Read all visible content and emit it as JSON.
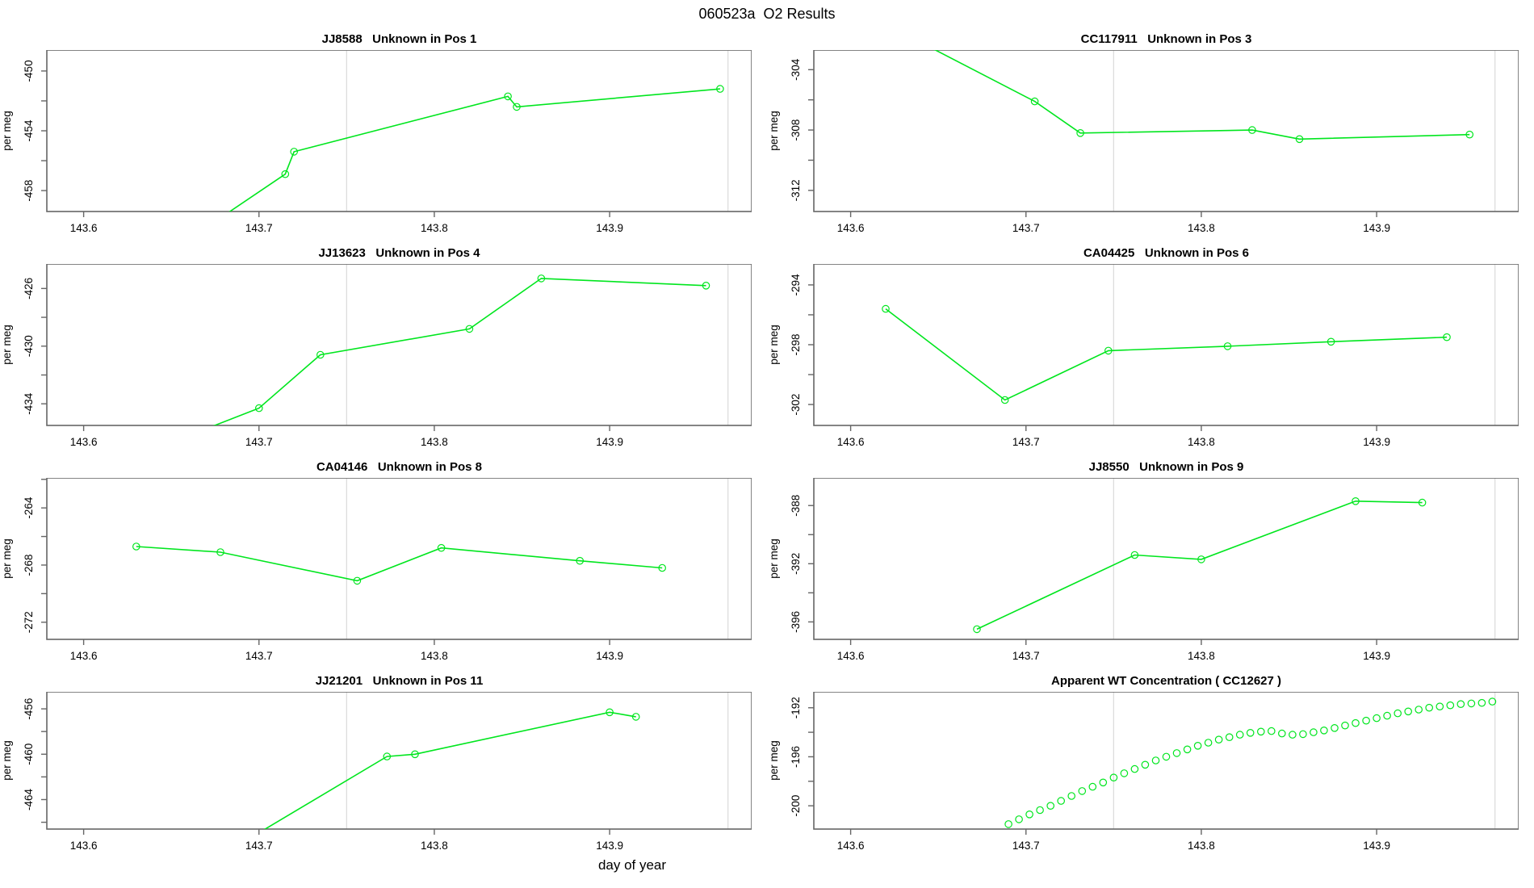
{
  "page_title": "060523a  O2 Results",
  "xlabel": "day of year",
  "colors": {
    "series": "#00e61e",
    "grid": "#dcdcdc",
    "axis": "#666666",
    "text": "#000000"
  },
  "x_axis": {
    "lim": [
      143.579,
      143.981
    ],
    "ticks": [
      143.6,
      143.7,
      143.8,
      143.9
    ],
    "tick_labels": [
      "143.6",
      "143.7",
      "143.8",
      "143.9"
    ],
    "vlines": [
      143.75,
      143.9675
    ]
  },
  "chart_data": [
    {
      "type": "line",
      "title": "JJ8588   Unknown in Pos 1",
      "ylabel": "per meg",
      "marker": "open-circle",
      "ylim": [
        -459.4,
        -448.6
      ],
      "yticks": {
        "values": [
          -450,
          -452,
          -454,
          -456,
          -458
        ],
        "labels": [
          "-450",
          "",
          "-454",
          "",
          "-458"
        ]
      },
      "points": [
        [
          143.672,
          -460.3
        ],
        [
          143.715,
          -456.9
        ],
        [
          143.72,
          -455.4
        ],
        [
          143.842,
          -451.7
        ],
        [
          143.847,
          -452.4
        ],
        [
          143.963,
          -451.2
        ]
      ]
    },
    {
      "type": "line",
      "title": "CC117911   Unknown in Pos 3",
      "ylabel": "per meg",
      "marker": "open-circle",
      "ylim": [
        -313.4,
        -302.7
      ],
      "yticks": {
        "values": [
          -304,
          -306,
          -308,
          -310,
          -312
        ],
        "labels": [
          "-304",
          "",
          "-308",
          "",
          "-312"
        ]
      },
      "points": [
        [
          143.63,
          -301.6
        ],
        [
          143.705,
          -306.1
        ],
        [
          143.731,
          -308.2
        ],
        [
          143.829,
          -308.0
        ],
        [
          143.856,
          -308.6
        ],
        [
          143.953,
          -308.3
        ]
      ]
    },
    {
      "type": "line",
      "title": "JJ13623   Unknown in Pos 4",
      "ylabel": "per meg",
      "marker": "open-circle",
      "ylim": [
        -435.5,
        -424.3
      ],
      "yticks": {
        "values": [
          -426,
          -428,
          -430,
          -432,
          -434
        ],
        "labels": [
          "-426",
          "",
          "-430",
          "",
          "-434"
        ]
      },
      "points": [
        [
          143.66,
          -436.2
        ],
        [
          143.7,
          -434.3
        ],
        [
          143.735,
          -430.6
        ],
        [
          143.82,
          -428.8
        ],
        [
          143.861,
          -425.3
        ],
        [
          143.955,
          -425.8
        ]
      ]
    },
    {
      "type": "line",
      "title": "CA04425   Unknown in Pos 6",
      "ylabel": "per meg",
      "marker": "open-circle",
      "ylim": [
        -303.4,
        -292.6
      ],
      "yticks": {
        "values": [
          -294,
          -296,
          -298,
          -300,
          -302
        ],
        "labels": [
          "-294",
          "",
          "-298",
          "",
          "-302"
        ]
      },
      "points": [
        [
          143.62,
          -295.6
        ],
        [
          143.688,
          -301.7
        ],
        [
          143.747,
          -298.4
        ],
        [
          143.815,
          -298.1
        ],
        [
          143.874,
          -297.8
        ],
        [
          143.94,
          -297.5
        ]
      ]
    },
    {
      "type": "line",
      "title": "CA04146   Unknown in Pos 8",
      "ylabel": "per meg",
      "marker": "open-circle",
      "ylim": [
        -273.2,
        -261.9
      ],
      "yticks": {
        "values": [
          -262,
          -264,
          -266,
          -268,
          -270,
          -272
        ],
        "labels": [
          "",
          "-264",
          "",
          "-268",
          "",
          "-272"
        ]
      },
      "points": [
        [
          143.63,
          -266.7
        ],
        [
          143.678,
          -267.1
        ],
        [
          143.756,
          -269.1
        ],
        [
          143.804,
          -266.8
        ],
        [
          143.883,
          -267.7
        ],
        [
          143.93,
          -268.2
        ]
      ]
    },
    {
      "type": "line",
      "title": "JJ8550   Unknown in Pos 9",
      "ylabel": "per meg",
      "marker": "open-circle",
      "ylim": [
        -397.2,
        -386.1
      ],
      "yticks": {
        "values": [
          -388,
          -390,
          -392,
          -394,
          -396
        ],
        "labels": [
          "-388",
          "",
          "-392",
          "",
          "-396"
        ]
      },
      "points": [
        [
          143.672,
          -396.5
        ],
        [
          143.762,
          -391.4
        ],
        [
          143.8,
          -391.7
        ],
        [
          143.888,
          -387.7
        ],
        [
          143.926,
          -387.8
        ]
      ]
    },
    {
      "type": "line",
      "title": "JJ21201   Unknown in Pos 11",
      "ylabel": "per meg",
      "marker": "open-circle",
      "ylim": [
        -466.6,
        -454.5
      ],
      "yticks": {
        "values": [
          -456,
          -458,
          -460,
          -462,
          -464,
          -466
        ],
        "labels": [
          "-456",
          "",
          "-460",
          "",
          "-464",
          ""
        ]
      },
      "points": [
        [
          143.697,
          -467.2
        ],
        [
          143.773,
          -460.2
        ],
        [
          143.789,
          -460.0
        ],
        [
          143.9,
          -456.3
        ],
        [
          143.915,
          -456.7
        ]
      ]
    },
    {
      "type": "scatter",
      "title": "Apparent WT Concentration ( CC12627 )",
      "ylabel": "per meg",
      "marker": "open-circle",
      "ylim": [
        -201.9,
        -190.7
      ],
      "yticks": {
        "values": [
          -192,
          -194,
          -196,
          -198,
          -200
        ],
        "labels": [
          "-192",
          "",
          "-196",
          "",
          "-200"
        ]
      },
      "points": [
        [
          143.69,
          -201.5
        ],
        [
          143.696,
          -201.1
        ],
        [
          143.702,
          -200.7
        ],
        [
          143.708,
          -200.35
        ],
        [
          143.714,
          -200.0
        ],
        [
          143.72,
          -199.6
        ],
        [
          143.726,
          -199.2
        ],
        [
          143.732,
          -198.8
        ],
        [
          143.738,
          -198.45
        ],
        [
          143.744,
          -198.1
        ],
        [
          143.75,
          -197.7
        ],
        [
          143.756,
          -197.35
        ],
        [
          143.762,
          -197.0
        ],
        [
          143.768,
          -196.65
        ],
        [
          143.774,
          -196.3
        ],
        [
          143.78,
          -196.0
        ],
        [
          143.786,
          -195.7
        ],
        [
          143.792,
          -195.4
        ],
        [
          143.798,
          -195.1
        ],
        [
          143.804,
          -194.85
        ],
        [
          143.81,
          -194.6
        ],
        [
          143.816,
          -194.4
        ],
        [
          143.822,
          -194.2
        ],
        [
          143.828,
          -194.05
        ],
        [
          143.834,
          -193.95
        ],
        [
          143.84,
          -193.9
        ],
        [
          143.846,
          -194.1
        ],
        [
          143.852,
          -194.2
        ],
        [
          143.858,
          -194.15
        ],
        [
          143.864,
          -194.0
        ],
        [
          143.87,
          -193.85
        ],
        [
          143.876,
          -193.65
        ],
        [
          143.882,
          -193.45
        ],
        [
          143.888,
          -193.25
        ],
        [
          143.894,
          -193.05
        ],
        [
          143.9,
          -192.85
        ],
        [
          143.906,
          -192.65
        ],
        [
          143.912,
          -192.45
        ],
        [
          143.918,
          -192.3
        ],
        [
          143.924,
          -192.15
        ],
        [
          143.93,
          -192.0
        ],
        [
          143.936,
          -191.9
        ],
        [
          143.942,
          -191.8
        ],
        [
          143.948,
          -191.7
        ],
        [
          143.954,
          -191.65
        ],
        [
          143.96,
          -191.6
        ],
        [
          143.966,
          -191.5
        ]
      ]
    }
  ]
}
